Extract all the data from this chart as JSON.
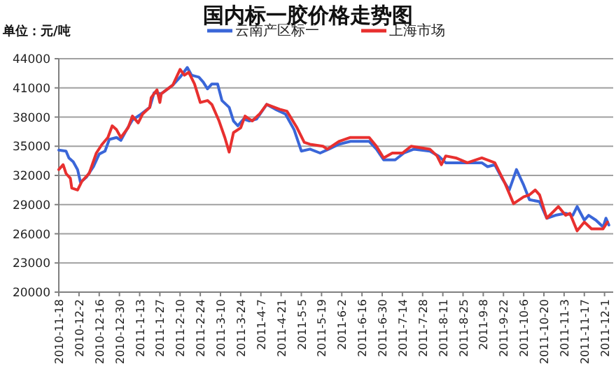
{
  "chart_data": {
    "type": "line",
    "title": "国内标一胶价格走势图",
    "annotations": [
      "单位：元/吨"
    ],
    "legend": "top",
    "grid": "y",
    "marker": "none",
    "line_style": "solid",
    "ylim": [
      20000,
      44000
    ],
    "yticks": [
      20000,
      23000,
      26000,
      29000,
      32000,
      35000,
      38000,
      41000,
      44000
    ],
    "xlim": [
      "2010-11-18",
      "2011-12-07"
    ],
    "xticks": [
      {
        "value": "2010-11-18",
        "label": "2010-11-18"
      },
      {
        "value": "2010-12-02",
        "label": "2010-12-2"
      },
      {
        "value": "2010-12-16",
        "label": "2010-12-16"
      },
      {
        "value": "2010-12-30",
        "label": "2010-12-30"
      },
      {
        "value": "2011-01-13",
        "label": "2011-1-13"
      },
      {
        "value": "2011-01-27",
        "label": "2011-1-27"
      },
      {
        "value": "2011-02-10",
        "label": "2011-2-10"
      },
      {
        "value": "2011-02-24",
        "label": "2011-2-24"
      },
      {
        "value": "2011-03-10",
        "label": "2011-3-10"
      },
      {
        "value": "2011-03-24",
        "label": "2011-3-24"
      },
      {
        "value": "2011-04-07",
        "label": "2011-4-7"
      },
      {
        "value": "2011-04-21",
        "label": "2011-4-21"
      },
      {
        "value": "2011-05-05",
        "label": "2011-5-5"
      },
      {
        "value": "2011-05-19",
        "label": "2011-5-19"
      },
      {
        "value": "2011-06-02",
        "label": "2011-6-2"
      },
      {
        "value": "2011-06-16",
        "label": "2011-6-16"
      },
      {
        "value": "2011-06-30",
        "label": "2011-6-30"
      },
      {
        "value": "2011-07-14",
        "label": "2011-7-14"
      },
      {
        "value": "2011-07-28",
        "label": "2011-7-28"
      },
      {
        "value": "2011-08-11",
        "label": "2011-8-11"
      },
      {
        "value": "2011-08-25",
        "label": "2011-8-25"
      },
      {
        "value": "2011-09-08",
        "label": "2011-9-8"
      },
      {
        "value": "2011-09-22",
        "label": "2011-9-22"
      },
      {
        "value": "2011-10-06",
        "label": "2011-10-6"
      },
      {
        "value": "2011-10-20",
        "label": "2011-10-20"
      },
      {
        "value": "2011-11-03",
        "label": "2011-11-3"
      },
      {
        "value": "2011-11-17",
        "label": "2011-11-17"
      },
      {
        "value": "2011-12-01",
        "label": "2011-12-1"
      }
    ],
    "series": [
      {
        "name": "云南产区标一",
        "color": "#3a66d8",
        "x": [
          "2010-11-18",
          "2010-11-23",
          "2010-11-25",
          "2010-11-28",
          "2010-12-01",
          "2010-12-03",
          "2010-12-07",
          "2010-12-12",
          "2010-12-16",
          "2010-12-20",
          "2010-12-23",
          "2010-12-28",
          "2010-12-31",
          "2011-01-04",
          "2011-01-08",
          "2011-01-13",
          "2011-01-20",
          "2011-01-23",
          "2011-01-28",
          "2011-02-05",
          "2011-02-10",
          "2011-02-15",
          "2011-02-18",
          "2011-02-23",
          "2011-02-26",
          "2011-03-01",
          "2011-03-04",
          "2011-03-08",
          "2011-03-11",
          "2011-03-16",
          "2011-03-19",
          "2011-03-22",
          "2011-03-26",
          "2011-03-30",
          "2011-04-04",
          "2011-04-11",
          "2011-04-17",
          "2011-04-24",
          "2011-04-30",
          "2011-05-05",
          "2011-05-11",
          "2011-05-18",
          "2011-05-24",
          "2011-05-31",
          "2011-06-08",
          "2011-06-21",
          "2011-06-26",
          "2011-07-01",
          "2011-07-09",
          "2011-07-15",
          "2011-07-22",
          "2011-08-02",
          "2011-08-08",
          "2011-08-13",
          "2011-08-25",
          "2011-09-07",
          "2011-09-11",
          "2011-09-16",
          "2011-09-21",
          "2011-09-26",
          "2011-10-01",
          "2011-10-06",
          "2011-10-10",
          "2011-10-17",
          "2011-10-22",
          "2011-10-28",
          "2011-11-04",
          "2011-11-09",
          "2011-11-12",
          "2011-11-17",
          "2011-11-20",
          "2011-11-25",
          "2011-11-30",
          "2011-12-02",
          "2011-12-04"
        ],
        "values": [
          34600,
          34500,
          33800,
          33400,
          32600,
          31300,
          31800,
          32900,
          34200,
          34500,
          35700,
          35900,
          35600,
          36700,
          37700,
          38200,
          39000,
          40500,
          40400,
          41300,
          42100,
          43100,
          42300,
          42100,
          41600,
          40900,
          41400,
          41400,
          39700,
          39000,
          37600,
          37100,
          37800,
          37600,
          37800,
          39300,
          38800,
          38300,
          36700,
          34500,
          34700,
          34300,
          34700,
          35200,
          35500,
          35500,
          34700,
          33600,
          33600,
          34300,
          34700,
          34500,
          34000,
          33300,
          33300,
          33300,
          32900,
          33100,
          31700,
          30500,
          32600,
          31000,
          29500,
          29300,
          27600,
          27900,
          28100,
          27900,
          28800,
          27400,
          27900,
          27400,
          26700,
          27600,
          26900
        ]
      },
      {
        "name": "上海市场",
        "color": "#e8302f",
        "x": [
          "2010-11-18",
          "2010-11-21",
          "2010-11-23",
          "2010-11-26",
          "2010-11-27",
          "2010-12-01",
          "2010-12-04",
          "2010-12-09",
          "2010-12-14",
          "2010-12-18",
          "2010-12-22",
          "2010-12-25",
          "2010-12-28",
          "2010-12-31",
          "2011-01-05",
          "2011-01-08",
          "2011-01-12",
          "2011-01-15",
          "2011-01-20",
          "2011-01-21",
          "2011-01-25",
          "2011-01-27",
          "2011-01-28",
          "2011-02-05",
          "2011-02-10",
          "2011-02-13",
          "2011-02-16",
          "2011-02-20",
          "2011-02-24",
          "2011-03-01",
          "2011-03-04",
          "2011-03-09",
          "2011-03-13",
          "2011-03-16",
          "2011-03-19",
          "2011-03-24",
          "2011-03-27",
          "2011-04-01",
          "2011-04-06",
          "2011-04-11",
          "2011-04-20",
          "2011-04-25",
          "2011-05-02",
          "2011-05-07",
          "2011-05-11",
          "2011-05-20",
          "2011-05-23",
          "2011-05-31",
          "2011-06-08",
          "2011-06-21",
          "2011-06-26",
          "2011-07-01",
          "2011-07-07",
          "2011-07-14",
          "2011-07-20",
          "2011-08-02",
          "2011-08-07",
          "2011-08-10",
          "2011-08-13",
          "2011-08-20",
          "2011-08-28",
          "2011-09-07",
          "2011-09-16",
          "2011-09-23",
          "2011-09-29",
          "2011-10-06",
          "2011-10-10",
          "2011-10-14",
          "2011-10-17",
          "2011-10-22",
          "2011-10-30",
          "2011-11-04",
          "2011-11-07",
          "2011-11-12",
          "2011-11-17",
          "2011-11-22",
          "2011-11-30",
          "2011-12-03"
        ],
        "values": [
          32600,
          33100,
          32200,
          31700,
          30700,
          30500,
          31400,
          32200,
          34300,
          35200,
          35900,
          37100,
          36700,
          35900,
          36900,
          38100,
          37400,
          38300,
          39000,
          40000,
          40800,
          39500,
          40400,
          41300,
          42900,
          42300,
          42600,
          41400,
          39500,
          39700,
          39300,
          37600,
          35900,
          34400,
          36400,
          36900,
          38100,
          37600,
          38300,
          39300,
          38800,
          38600,
          36900,
          35400,
          35200,
          35000,
          34700,
          35500,
          35900,
          35900,
          35000,
          33800,
          34300,
          34300,
          35000,
          34700,
          34000,
          33100,
          34000,
          33800,
          33300,
          33800,
          33300,
          31200,
          29100,
          29800,
          30000,
          30500,
          30000,
          27600,
          28800,
          27900,
          28100,
          26300,
          27200,
          26500,
          26500,
          27200
        ]
      }
    ]
  }
}
